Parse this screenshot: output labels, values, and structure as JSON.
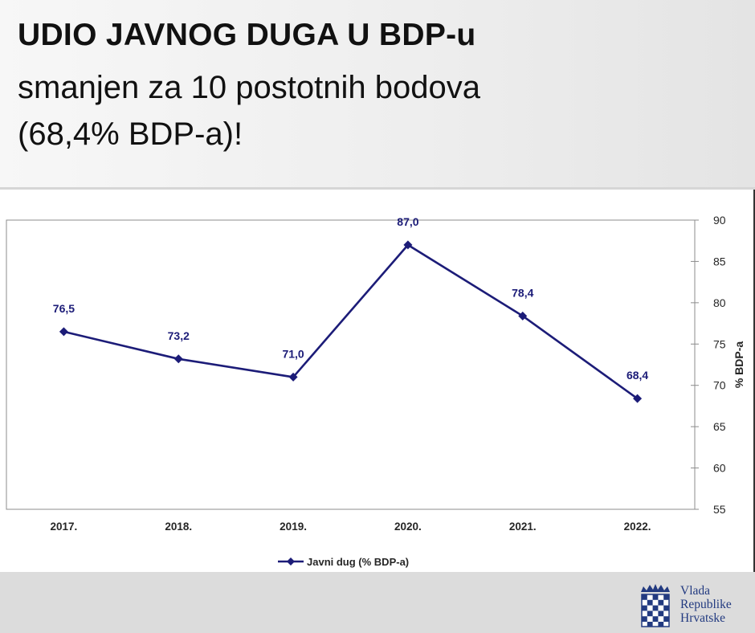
{
  "header": {
    "title": "UDIO JAVNOG DUGA U BDP-u",
    "subtitle_line1": "smanjen za 10 postotnih bodova",
    "subtitle_line2": "(68,4% BDP-a)!"
  },
  "logo": {
    "line1": "Vlada",
    "line2": "Republike",
    "line3": "Hrvatske",
    "icon": "croatian-coat-of-arms-icon"
  },
  "colors": {
    "series": "#1c1c78",
    "axis": "#8c8c8c",
    "text": "#262626",
    "logo": "#223a80",
    "header_bg": "#ececec",
    "footer_bg": "#dcdcdc"
  },
  "chart_data": {
    "type": "line",
    "title": "",
    "categories": [
      "2017.",
      "2018.",
      "2019.",
      "2020.",
      "2021.",
      "2022."
    ],
    "series": [
      {
        "name": "Javni dug (% BDP-a)",
        "values": [
          76.5,
          73.2,
          71.0,
          87.0,
          78.4,
          68.4
        ],
        "data_labels": [
          "76,5",
          "73,2",
          "71,0",
          "87,0",
          "78,4",
          "68,4"
        ]
      }
    ],
    "ylabel": "% BDP-a",
    "y_axis_side": "right",
    "ylim": [
      55,
      90
    ],
    "yticks": [
      55,
      60,
      65,
      70,
      75,
      80,
      85,
      90
    ],
    "grid": false,
    "legend_position": "bottom",
    "marker": "diamond"
  }
}
